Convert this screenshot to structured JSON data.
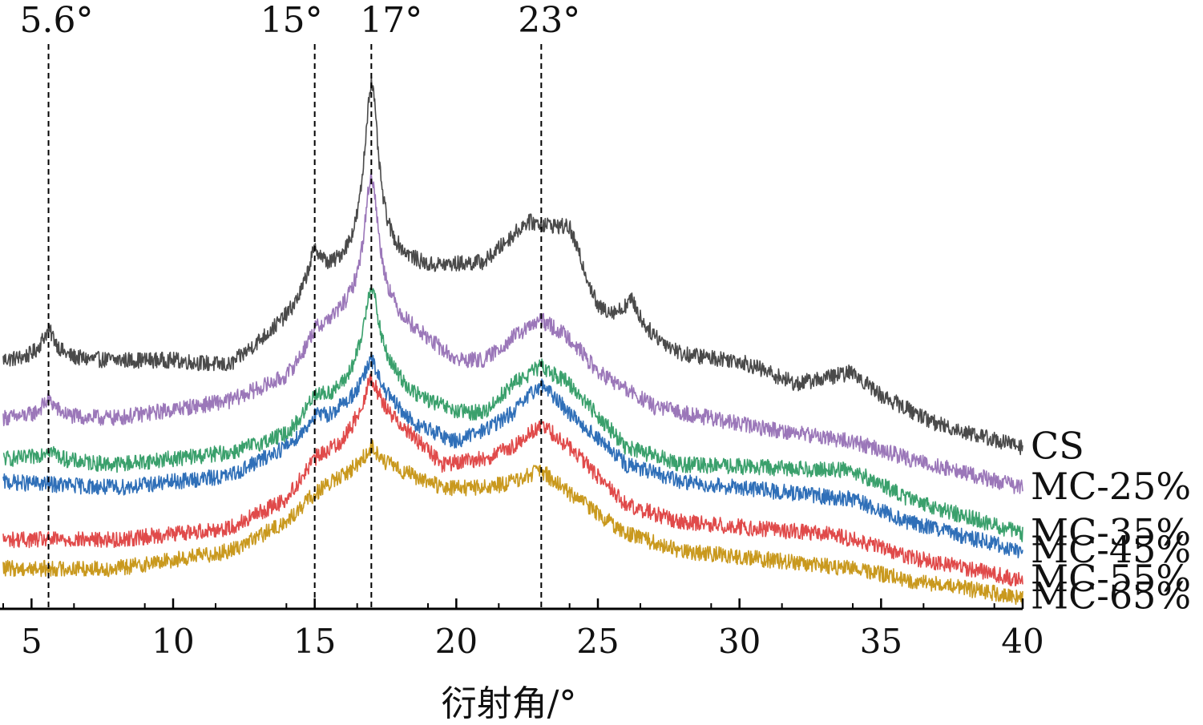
{
  "chart_data": {
    "type": "line",
    "xlabel": "衍射角/°",
    "ylabel": "",
    "xlim": [
      4,
      40
    ],
    "x_ticks": [
      5,
      10,
      15,
      20,
      25,
      30,
      35,
      40
    ],
    "x_tick_labels": [
      "5",
      "10",
      "15",
      "20",
      "25",
      "30",
      "35",
      "40"
    ],
    "grid": false,
    "legend": "right-end labels",
    "reference_lines": [
      {
        "x": 5.6,
        "label": "5.6°"
      },
      {
        "x": 15,
        "label": "15°"
      },
      {
        "x": 17,
        "label": "17°"
      },
      {
        "x": 23,
        "label": "23°"
      }
    ],
    "series": [
      {
        "name": "CS",
        "color": "#4a4a4a",
        "baseline": [
          [
            4,
            0.43
          ],
          [
            6,
            0.43
          ],
          [
            10,
            0.43
          ],
          [
            12,
            0.42
          ],
          [
            14,
            0.5
          ],
          [
            16,
            0.59
          ],
          [
            17,
            0.62
          ],
          [
            19,
            0.59
          ],
          [
            21,
            0.6
          ],
          [
            22.5,
            0.67
          ],
          [
            24,
            0.66
          ],
          [
            25,
            0.52
          ],
          [
            26,
            0.5
          ],
          [
            28,
            0.44
          ],
          [
            30,
            0.43
          ],
          [
            32,
            0.39
          ],
          [
            34,
            0.41
          ],
          [
            35,
            0.37
          ],
          [
            37,
            0.32
          ],
          [
            40,
            0.28
          ]
        ],
        "peaks": [
          {
            "x": 5.6,
            "height": 0.05,
            "width": 0.35
          },
          {
            "x": 15.0,
            "height": 0.07,
            "width": 0.35
          },
          {
            "x": 17.0,
            "height": 0.29,
            "width": 0.3
          },
          {
            "x": 26.2,
            "height": 0.04,
            "width": 0.3
          }
        ]
      },
      {
        "name": "MC-25%",
        "color": "#9b77b9",
        "baseline": [
          [
            4,
            0.33
          ],
          [
            8,
            0.33
          ],
          [
            12,
            0.36
          ],
          [
            14,
            0.4
          ],
          [
            15.5,
            0.49
          ],
          [
            17,
            0.55
          ],
          [
            18,
            0.5
          ],
          [
            20,
            0.43
          ],
          [
            21,
            0.43
          ],
          [
            22,
            0.47
          ],
          [
            23,
            0.5
          ],
          [
            24,
            0.47
          ],
          [
            25,
            0.41
          ],
          [
            27,
            0.35
          ],
          [
            30,
            0.32
          ],
          [
            34,
            0.29
          ],
          [
            36,
            0.26
          ],
          [
            40,
            0.21
          ]
        ],
        "peaks": [
          {
            "x": 5.6,
            "height": 0.03,
            "width": 0.35
          },
          {
            "x": 15.0,
            "height": 0.02,
            "width": 0.35
          },
          {
            "x": 17.0,
            "height": 0.2,
            "width": 0.3
          }
        ]
      },
      {
        "name": "MC-35%",
        "color": "#3aa06c",
        "baseline": [
          [
            4,
            0.26
          ],
          [
            8,
            0.25
          ],
          [
            12,
            0.27
          ],
          [
            14,
            0.3
          ],
          [
            16,
            0.38
          ],
          [
            17,
            0.44
          ],
          [
            18.5,
            0.37
          ],
          [
            20,
            0.34
          ],
          [
            21,
            0.34
          ],
          [
            22,
            0.39
          ],
          [
            23,
            0.42
          ],
          [
            24,
            0.39
          ],
          [
            26,
            0.28
          ],
          [
            28,
            0.25
          ],
          [
            34,
            0.24
          ],
          [
            36,
            0.19
          ],
          [
            40,
            0.13
          ]
        ],
        "peaks": [
          {
            "x": 5.6,
            "height": 0.02,
            "width": 0.35
          },
          {
            "x": 15.0,
            "height": 0.03,
            "width": 0.35
          },
          {
            "x": 17.0,
            "height": 0.12,
            "width": 0.3
          }
        ]
      },
      {
        "name": "MC-45%",
        "color": "#2f6fb8",
        "baseline": [
          [
            4,
            0.22
          ],
          [
            8,
            0.21
          ],
          [
            12,
            0.23
          ],
          [
            14,
            0.28
          ],
          [
            15.5,
            0.33
          ],
          [
            17,
            0.39
          ],
          [
            18.5,
            0.32
          ],
          [
            20,
            0.29
          ],
          [
            21,
            0.31
          ],
          [
            22,
            0.34
          ],
          [
            23,
            0.39
          ],
          [
            24,
            0.34
          ],
          [
            26,
            0.25
          ],
          [
            28,
            0.22
          ],
          [
            34,
            0.19
          ],
          [
            36,
            0.15
          ],
          [
            40,
            0.1
          ]
        ],
        "peaks": [
          {
            "x": 15.0,
            "height": 0.02,
            "width": 0.35
          },
          {
            "x": 17.0,
            "height": 0.04,
            "width": 0.3
          }
        ]
      },
      {
        "name": "MC-55%",
        "color": "#e04a4a",
        "baseline": [
          [
            4,
            0.12
          ],
          [
            8,
            0.12
          ],
          [
            12,
            0.14
          ],
          [
            14,
            0.19
          ],
          [
            15,
            0.26
          ],
          [
            16,
            0.29
          ],
          [
            17,
            0.36
          ],
          [
            18,
            0.32
          ],
          [
            19.5,
            0.25
          ],
          [
            21,
            0.26
          ],
          [
            22,
            0.28
          ],
          [
            23,
            0.32
          ],
          [
            24,
            0.28
          ],
          [
            26,
            0.18
          ],
          [
            28,
            0.15
          ],
          [
            33,
            0.13
          ],
          [
            34,
            0.12
          ],
          [
            36,
            0.09
          ],
          [
            40,
            0.05
          ]
        ],
        "peaks": [
          {
            "x": 17.0,
            "height": 0.04,
            "width": 0.3
          }
        ]
      },
      {
        "name": "MC-65%",
        "color": "#c9991e",
        "baseline": [
          [
            4,
            0.07
          ],
          [
            8,
            0.07
          ],
          [
            12,
            0.1
          ],
          [
            14,
            0.15
          ],
          [
            15,
            0.2
          ],
          [
            16,
            0.23
          ],
          [
            17,
            0.26
          ],
          [
            18,
            0.24
          ],
          [
            19.5,
            0.21
          ],
          [
            21,
            0.21
          ],
          [
            22,
            0.22
          ],
          [
            23,
            0.24
          ],
          [
            24,
            0.2
          ],
          [
            26,
            0.13
          ],
          [
            28,
            0.1
          ],
          [
            34,
            0.07
          ],
          [
            36,
            0.05
          ],
          [
            40,
            0.02
          ]
        ],
        "peaks": [
          {
            "x": 17.0,
            "height": 0.02,
            "width": 0.3
          }
        ]
      }
    ]
  }
}
